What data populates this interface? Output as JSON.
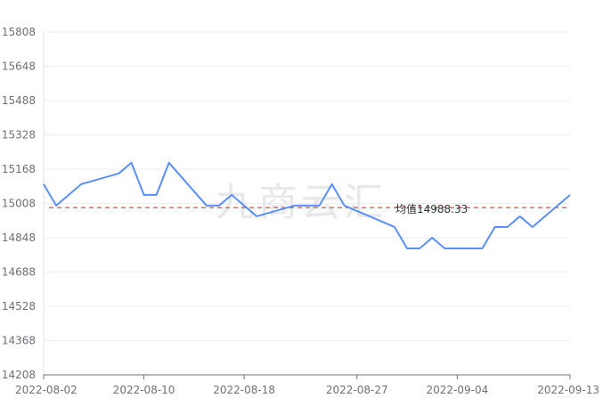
{
  "chart_data": {
    "type": "line",
    "title": "",
    "xlabel": "",
    "ylabel": "",
    "ylim": [
      14208,
      15808
    ],
    "yticks": [
      14208,
      14368,
      14528,
      14688,
      14848,
      15008,
      15168,
      15328,
      15488,
      15648,
      15808
    ],
    "x_range": [
      "2022-08-02",
      "2022-09-13"
    ],
    "xticks": [
      "2022-08-02",
      "2022-08-10",
      "2022-08-18",
      "2022-08-27",
      "2022-09-04",
      "2022-09-13"
    ],
    "grid": true,
    "line_color": "#5b8ff9",
    "mean": {
      "value": 14988.33,
      "label": "均值14988.33",
      "color": "#e8474c"
    },
    "watermark": "九商云汇",
    "series": [
      {
        "points": [
          {
            "x": "2022-08-02",
            "y": 15098
          },
          {
            "x": "2022-08-03",
            "y": 14998
          },
          {
            "x": "2022-08-05",
            "y": 15098
          },
          {
            "x": "2022-08-08",
            "y": 15148
          },
          {
            "x": "2022-08-09",
            "y": 15198
          },
          {
            "x": "2022-08-10",
            "y": 15048
          },
          {
            "x": "2022-08-11",
            "y": 15048
          },
          {
            "x": "2022-08-12",
            "y": 15198
          },
          {
            "x": "2022-08-15",
            "y": 14998
          },
          {
            "x": "2022-08-16",
            "y": 14998
          },
          {
            "x": "2022-08-17",
            "y": 15048
          },
          {
            "x": "2022-08-19",
            "y": 14948
          },
          {
            "x": "2022-08-22",
            "y": 14998
          },
          {
            "x": "2022-08-23",
            "y": 14998
          },
          {
            "x": "2022-08-24",
            "y": 14998
          },
          {
            "x": "2022-08-25",
            "y": 15098
          },
          {
            "x": "2022-08-26",
            "y": 14998
          },
          {
            "x": "2022-08-30",
            "y": 14898
          },
          {
            "x": "2022-08-31",
            "y": 14798
          },
          {
            "x": "2022-09-01",
            "y": 14798
          },
          {
            "x": "2022-09-02",
            "y": 14848
          },
          {
            "x": "2022-09-03",
            "y": 14798
          },
          {
            "x": "2022-09-06",
            "y": 14798
          },
          {
            "x": "2022-09-07",
            "y": 14898
          },
          {
            "x": "2022-09-08",
            "y": 14898
          },
          {
            "x": "2022-09-09",
            "y": 14948
          },
          {
            "x": "2022-09-10",
            "y": 14898
          },
          {
            "x": "2022-09-13",
            "y": 15048
          }
        ]
      }
    ]
  }
}
